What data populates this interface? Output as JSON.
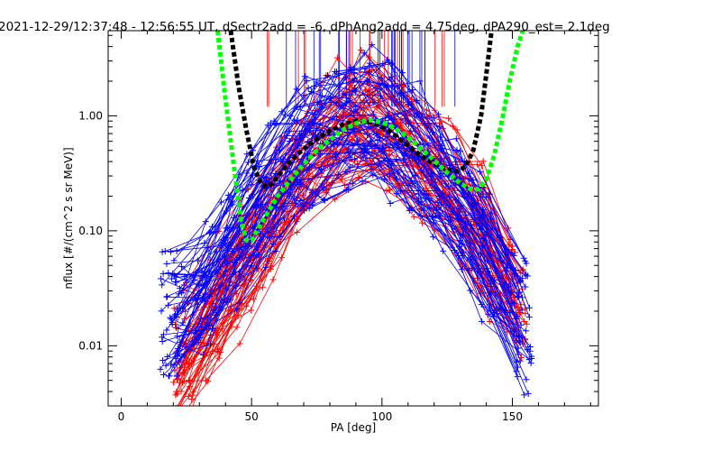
{
  "chart_data": {
    "type": "line",
    "title": "2021-12-29/12:37:48 - 12:56:55 UT, dSectr2add = -6, dPhAng2add = 4.75deg, dPA290_est=   2.1deg",
    "xlabel": "PA [deg]",
    "ylabel": "nflux [#/(cm^2 s sr MeV)]",
    "xlim": [
      -5,
      183
    ],
    "ylim": [
      0.003,
      5.5
    ],
    "yscale": "log",
    "x_ticks": [
      0,
      50,
      100,
      150
    ],
    "x_tick_labels": [
      "0",
      "50",
      "100",
      "150"
    ],
    "y_ticks": [
      0.01,
      0.1,
      1.0
    ],
    "y_tick_labels": [
      "0.01",
      "0.10",
      "1.00"
    ],
    "grid": false,
    "colors": {
      "red_series": "#ff0000",
      "blue_series": "#0000ff",
      "black_fit": "#000000",
      "green_fit": "#00ff00"
    },
    "series": [
      {
        "color": "#ff0000",
        "style": "lines+plus markers, many traces",
        "envelope_x": [
          20,
          30,
          40,
          50,
          60,
          70,
          80,
          90,
          95,
          100,
          110,
          120,
          130,
          140,
          150,
          160
        ],
        "envelope_center": [
          0.006,
          0.012,
          0.03,
          0.07,
          0.16,
          0.35,
          0.65,
          0.85,
          0.9,
          0.8,
          0.55,
          0.35,
          0.2,
          0.09,
          0.03,
          0.012
        ]
      },
      {
        "color": "#0000ff",
        "style": "lines+plus markers, many traces",
        "envelope_x": [
          15,
          25,
          35,
          45,
          55,
          65,
          75,
          85,
          95,
          105,
          115,
          125,
          135,
          145,
          155,
          162
        ],
        "envelope_center": [
          0.02,
          0.015,
          0.04,
          0.09,
          0.2,
          0.4,
          0.7,
          0.9,
          0.95,
          0.75,
          0.45,
          0.22,
          0.1,
          0.04,
          0.015,
          0.008
        ]
      },
      {
        "color": "#000000",
        "style": "thick dashed fit",
        "x": [
          42,
          45,
          48,
          51,
          54,
          56,
          58,
          60,
          64,
          68,
          72,
          76,
          80,
          85,
          90,
          94,
          98,
          102,
          106,
          110,
          115,
          120,
          125,
          129,
          132,
          135,
          138,
          140,
          142
        ],
        "y": [
          5.5,
          1.8,
          0.75,
          0.35,
          0.25,
          0.24,
          0.26,
          0.3,
          0.38,
          0.47,
          0.56,
          0.65,
          0.74,
          0.84,
          0.9,
          0.9,
          0.85,
          0.76,
          0.65,
          0.55,
          0.45,
          0.38,
          0.34,
          0.33,
          0.36,
          0.5,
          1.0,
          2.3,
          5.5
        ]
      },
      {
        "color": "#00ff00",
        "style": "thick dashed fit",
        "x": [
          37,
          40,
          43,
          46,
          48,
          50,
          52,
          55,
          60,
          65,
          70,
          75,
          80,
          85,
          90,
          95,
          100,
          105,
          110,
          115,
          120,
          125,
          130,
          134,
          137,
          140,
          143,
          146,
          149,
          152,
          154
        ],
        "y": [
          5.5,
          1.4,
          0.4,
          0.12,
          0.083,
          0.082,
          0.1,
          0.13,
          0.2,
          0.28,
          0.38,
          0.5,
          0.62,
          0.75,
          0.86,
          0.92,
          0.88,
          0.78,
          0.65,
          0.52,
          0.41,
          0.32,
          0.26,
          0.23,
          0.23,
          0.28,
          0.45,
          0.9,
          2.0,
          4.0,
          5.5
        ]
      }
    ]
  }
}
